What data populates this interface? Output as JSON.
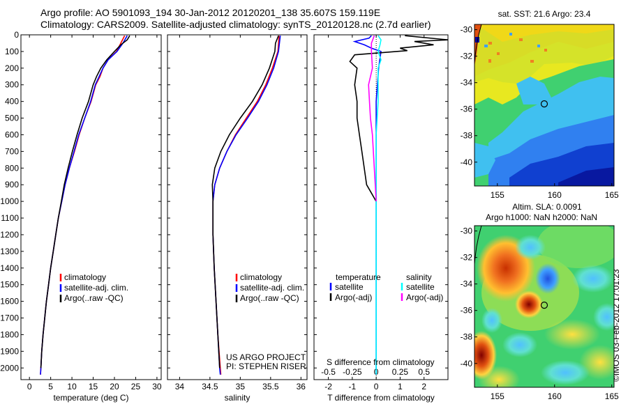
{
  "header": {
    "title_line1": "Argo profile: AO 5901093_194 30-Jan-2012 20120201_138 35.607S 159.119E",
    "title_line2": "Climatology: CARS2009. Satellite-adjusted climatology: synTS_20120128.nc (2.7d earlier)"
  },
  "watermark": "©IMOS 03-Feb-2012 17:01:23",
  "colors": {
    "climatology": "#ff0000",
    "satellite": "#0000ff",
    "argo": "#000000",
    "sat_salinity": "#00ffff",
    "argo_salinity": "#ff00ff"
  },
  "chart_data": [
    {
      "type": "line",
      "id": "temperature",
      "xlabel": "temperature (deg C)",
      "ylabel": "",
      "xlim": [
        -2,
        31
      ],
      "ylim": [
        2070,
        0
      ],
      "xticks": [
        0,
        5,
        10,
        15,
        20,
        25,
        30
      ],
      "yticks": [
        0,
        100,
        200,
        300,
        400,
        500,
        600,
        700,
        800,
        900,
        1000,
        1100,
        1200,
        1300,
        1400,
        1500,
        1600,
        1700,
        1800,
        1900,
        2000
      ],
      "legend": [
        "climatology",
        "satellite-adj. clim.",
        "Argo(..raw -QC)"
      ],
      "series": [
        {
          "name": "climatology",
          "color": "#ff0000",
          "points": [
            [
              22.4,
              5
            ],
            [
              21.5,
              50
            ],
            [
              20.5,
              100
            ],
            [
              18.5,
              150
            ],
            [
              17.3,
              200
            ],
            [
              16.6,
              250
            ],
            [
              15.6,
              300
            ],
            [
              14.5,
              400
            ],
            [
              13.0,
              500
            ],
            [
              11.7,
              600
            ],
            [
              10.6,
              700
            ],
            [
              9.4,
              800
            ],
            [
              8.4,
              900
            ],
            [
              7.6,
              1000
            ],
            [
              6.8,
              1100
            ],
            [
              6.2,
              1200
            ],
            [
              5.6,
              1300
            ],
            [
              5.0,
              1400
            ],
            [
              4.5,
              1500
            ],
            [
              4.0,
              1600
            ],
            [
              3.6,
              1700
            ],
            [
              3.2,
              1800
            ],
            [
              2.9,
              1900
            ],
            [
              2.7,
              2000
            ],
            [
              2.6,
              2040
            ]
          ]
        },
        {
          "name": "satellite-adj. clim.",
          "color": "#0000ff",
          "points": [
            [
              23.0,
              5
            ],
            [
              22.0,
              50
            ],
            [
              20.6,
              100
            ],
            [
              18.5,
              150
            ],
            [
              17.3,
              200
            ],
            [
              16.4,
              250
            ],
            [
              15.5,
              300
            ],
            [
              14.4,
              400
            ],
            [
              13.0,
              500
            ],
            [
              11.6,
              600
            ],
            [
              10.5,
              700
            ],
            [
              9.4,
              800
            ],
            [
              8.4,
              900
            ],
            [
              7.6,
              1000
            ],
            [
              6.8,
              1100
            ],
            [
              6.2,
              1200
            ],
            [
              5.6,
              1300
            ],
            [
              5.0,
              1400
            ],
            [
              4.5,
              1500
            ],
            [
              4.0,
              1600
            ],
            [
              3.6,
              1700
            ],
            [
              3.2,
              1800
            ],
            [
              2.9,
              1900
            ],
            [
              2.7,
              2000
            ],
            [
              2.6,
              2040
            ]
          ]
        },
        {
          "name": "Argo(..raw -QC)",
          "color": "#000000",
          "points": [
            [
              23.6,
              5
            ],
            [
              23.0,
              30
            ],
            [
              21.5,
              60
            ],
            [
              20.0,
              100
            ],
            [
              18.2,
              150
            ],
            [
              16.8,
              200
            ],
            [
              15.8,
              250
            ],
            [
              15.0,
              300
            ],
            [
              13.9,
              400
            ],
            [
              12.4,
              500
            ],
            [
              11.2,
              600
            ],
            [
              10.1,
              700
            ],
            [
              9.1,
              800
            ],
            [
              8.2,
              900
            ],
            [
              7.5,
              1000
            ],
            [
              6.8,
              1100
            ],
            [
              6.2,
              1200
            ],
            [
              5.6,
              1300
            ],
            [
              5.0,
              1400
            ],
            [
              4.5,
              1500
            ],
            [
              4.0,
              1600
            ],
            [
              3.6,
              1700
            ],
            [
              3.2,
              1800
            ],
            [
              2.9,
              1900
            ],
            [
              2.7,
              2000
            ]
          ]
        }
      ]
    },
    {
      "type": "line",
      "id": "salinity",
      "xlabel": "salinity",
      "xlim": [
        33.8,
        36.1
      ],
      "ylim": [
        2070,
        0
      ],
      "xticks": [
        34,
        34.5,
        35,
        35.5,
        36
      ],
      "legend": [
        "climatology",
        "satellite-adj. clim.",
        "Argo(..raw -QC)"
      ],
      "annotation": [
        "US ARGO PROJECT",
        "PI: STEPHEN RISER"
      ],
      "series": [
        {
          "name": "climatology",
          "color": "#ff0000",
          "points": [
            [
              35.64,
              5
            ],
            [
              35.62,
              100
            ],
            [
              35.53,
              200
            ],
            [
              35.42,
              300
            ],
            [
              35.28,
              400
            ],
            [
              35.1,
              500
            ],
            [
              34.92,
              600
            ],
            [
              34.78,
              700
            ],
            [
              34.66,
              800
            ],
            [
              34.58,
              900
            ],
            [
              34.55,
              1000
            ],
            [
              34.55,
              1200
            ],
            [
              34.57,
              1400
            ],
            [
              34.6,
              1600
            ],
            [
              34.63,
              1800
            ],
            [
              34.67,
              2000
            ],
            [
              34.68,
              2040
            ]
          ]
        },
        {
          "name": "satellite-adj. clim.",
          "color": "#0000ff",
          "points": [
            [
              35.66,
              5
            ],
            [
              35.63,
              100
            ],
            [
              35.55,
              200
            ],
            [
              35.44,
              300
            ],
            [
              35.3,
              400
            ],
            [
              35.12,
              500
            ],
            [
              34.93,
              600
            ],
            [
              34.78,
              700
            ],
            [
              34.66,
              800
            ],
            [
              34.58,
              900
            ],
            [
              34.55,
              1000
            ],
            [
              34.55,
              1200
            ],
            [
              34.57,
              1400
            ],
            [
              34.6,
              1600
            ],
            [
              34.63,
              1800
            ],
            [
              34.66,
              2000
            ],
            [
              34.67,
              2040
            ]
          ]
        },
        {
          "name": "Argo(..raw -QC)",
          "color": "#000000",
          "points": [
            [
              35.63,
              5
            ],
            [
              35.58,
              50
            ],
            [
              35.57,
              100
            ],
            [
              35.48,
              200
            ],
            [
              35.36,
              300
            ],
            [
              35.2,
              400
            ],
            [
              35.0,
              500
            ],
            [
              34.82,
              600
            ],
            [
              34.68,
              700
            ],
            [
              34.58,
              800
            ],
            [
              34.54,
              900
            ],
            [
              34.55,
              1000
            ],
            [
              34.55,
              1200
            ],
            [
              34.57,
              1400
            ],
            [
              34.6,
              1600
            ],
            [
              34.63,
              1800
            ],
            [
              34.66,
              2000
            ]
          ]
        }
      ]
    },
    {
      "type": "line",
      "id": "difference",
      "xlabel": "T difference from climatology",
      "top_label": "S difference from climatology",
      "xlim": [
        -2.6,
        3.0
      ],
      "ylim": [
        2070,
        0
      ],
      "xticks": [
        -2,
        -1,
        0,
        1,
        2
      ],
      "sticks_labels": [
        "-0.5",
        "-0.25",
        "0",
        "0.25",
        "0.5"
      ],
      "s_scale": 4,
      "legend_titles": [
        "temperature",
        "salinity"
      ],
      "legend": [
        "satellite",
        "Argo(-adj)",
        "satellite",
        "Argo(-adj)"
      ],
      "series": [
        {
          "name": "satellite",
          "quantity": "temperature",
          "color": "#0000ff",
          "points": [
            [
              -0.2,
              5
            ],
            [
              -0.3,
              20
            ],
            [
              -0.9,
              40
            ],
            [
              -0.5,
              60
            ],
            [
              -0.2,
              80
            ],
            [
              0.2,
              100
            ],
            [
              0.1,
              200
            ],
            [
              0.0,
              400
            ],
            [
              0.0,
              1000
            ],
            [
              0.0,
              2040
            ]
          ]
        },
        {
          "name": "Argo(-adj)",
          "quantity": "temperature",
          "color": "#000000",
          "points": [
            [
              1.2,
              5
            ],
            [
              3.0,
              30
            ],
            [
              1.6,
              40
            ],
            [
              2.4,
              60
            ],
            [
              1.0,
              80
            ],
            [
              1.3,
              95
            ],
            [
              -0.9,
              120
            ],
            [
              -1.1,
              160
            ],
            [
              -0.8,
              200
            ],
            [
              -0.9,
              300
            ],
            [
              -0.8,
              400
            ],
            [
              -0.8,
              500
            ],
            [
              -0.7,
              600
            ],
            [
              -0.6,
              700
            ],
            [
              -0.5,
              800
            ],
            [
              -0.4,
              900
            ],
            [
              -0.2,
              950
            ],
            [
              0.0,
              1000
            ]
          ]
        },
        {
          "name": "satellite",
          "quantity": "salinity",
          "color": "#00ffff",
          "points": [
            [
              0.02,
              5
            ],
            [
              0.05,
              30
            ],
            [
              0.04,
              60
            ],
            [
              0.02,
              100
            ],
            [
              0.05,
              150
            ],
            [
              0.02,
              200
            ],
            [
              0.02,
              400
            ],
            [
              0.0,
              600
            ],
            [
              0.0,
              800
            ],
            [
              0.0,
              2040
            ]
          ]
        },
        {
          "name": "Argo(-adj)",
          "quantity": "salinity",
          "color": "#ff00ff",
          "points": [
            [
              -0.02,
              5
            ],
            [
              -0.05,
              50
            ],
            [
              -0.05,
              100
            ],
            [
              -0.04,
              200
            ],
            [
              -0.08,
              300
            ],
            [
              -0.07,
              400
            ],
            [
              -0.06,
              500
            ],
            [
              -0.04,
              600
            ],
            [
              -0.02,
              800
            ],
            [
              -0.01,
              900
            ],
            [
              0.0,
              1000
            ]
          ]
        }
      ]
    },
    {
      "type": "heatmap",
      "id": "sst-map",
      "title": "sat. SST: 21.6  Argo: 23.4",
      "xlim": [
        153,
        165.2
      ],
      "ylim": [
        -41.8,
        -29.6
      ],
      "xticks": [
        155,
        160,
        165
      ],
      "yticks": [
        -30,
        -32,
        -34,
        -36,
        -38,
        -40
      ],
      "marker": [
        159.1,
        -35.6
      ]
    },
    {
      "type": "heatmap",
      "id": "sla-map",
      "title_lines": [
        "Altim. SLA: 0.0091",
        "Argo h1000: NaN h2000: NaN"
      ],
      "xlim": [
        153,
        165.2
      ],
      "ylim": [
        -41.8,
        -29.6
      ],
      "xticks": [
        155,
        160,
        165
      ],
      "yticks": [
        -30,
        -32,
        -34,
        -36,
        -38,
        -40
      ],
      "marker": [
        159.1,
        -35.6
      ]
    }
  ]
}
